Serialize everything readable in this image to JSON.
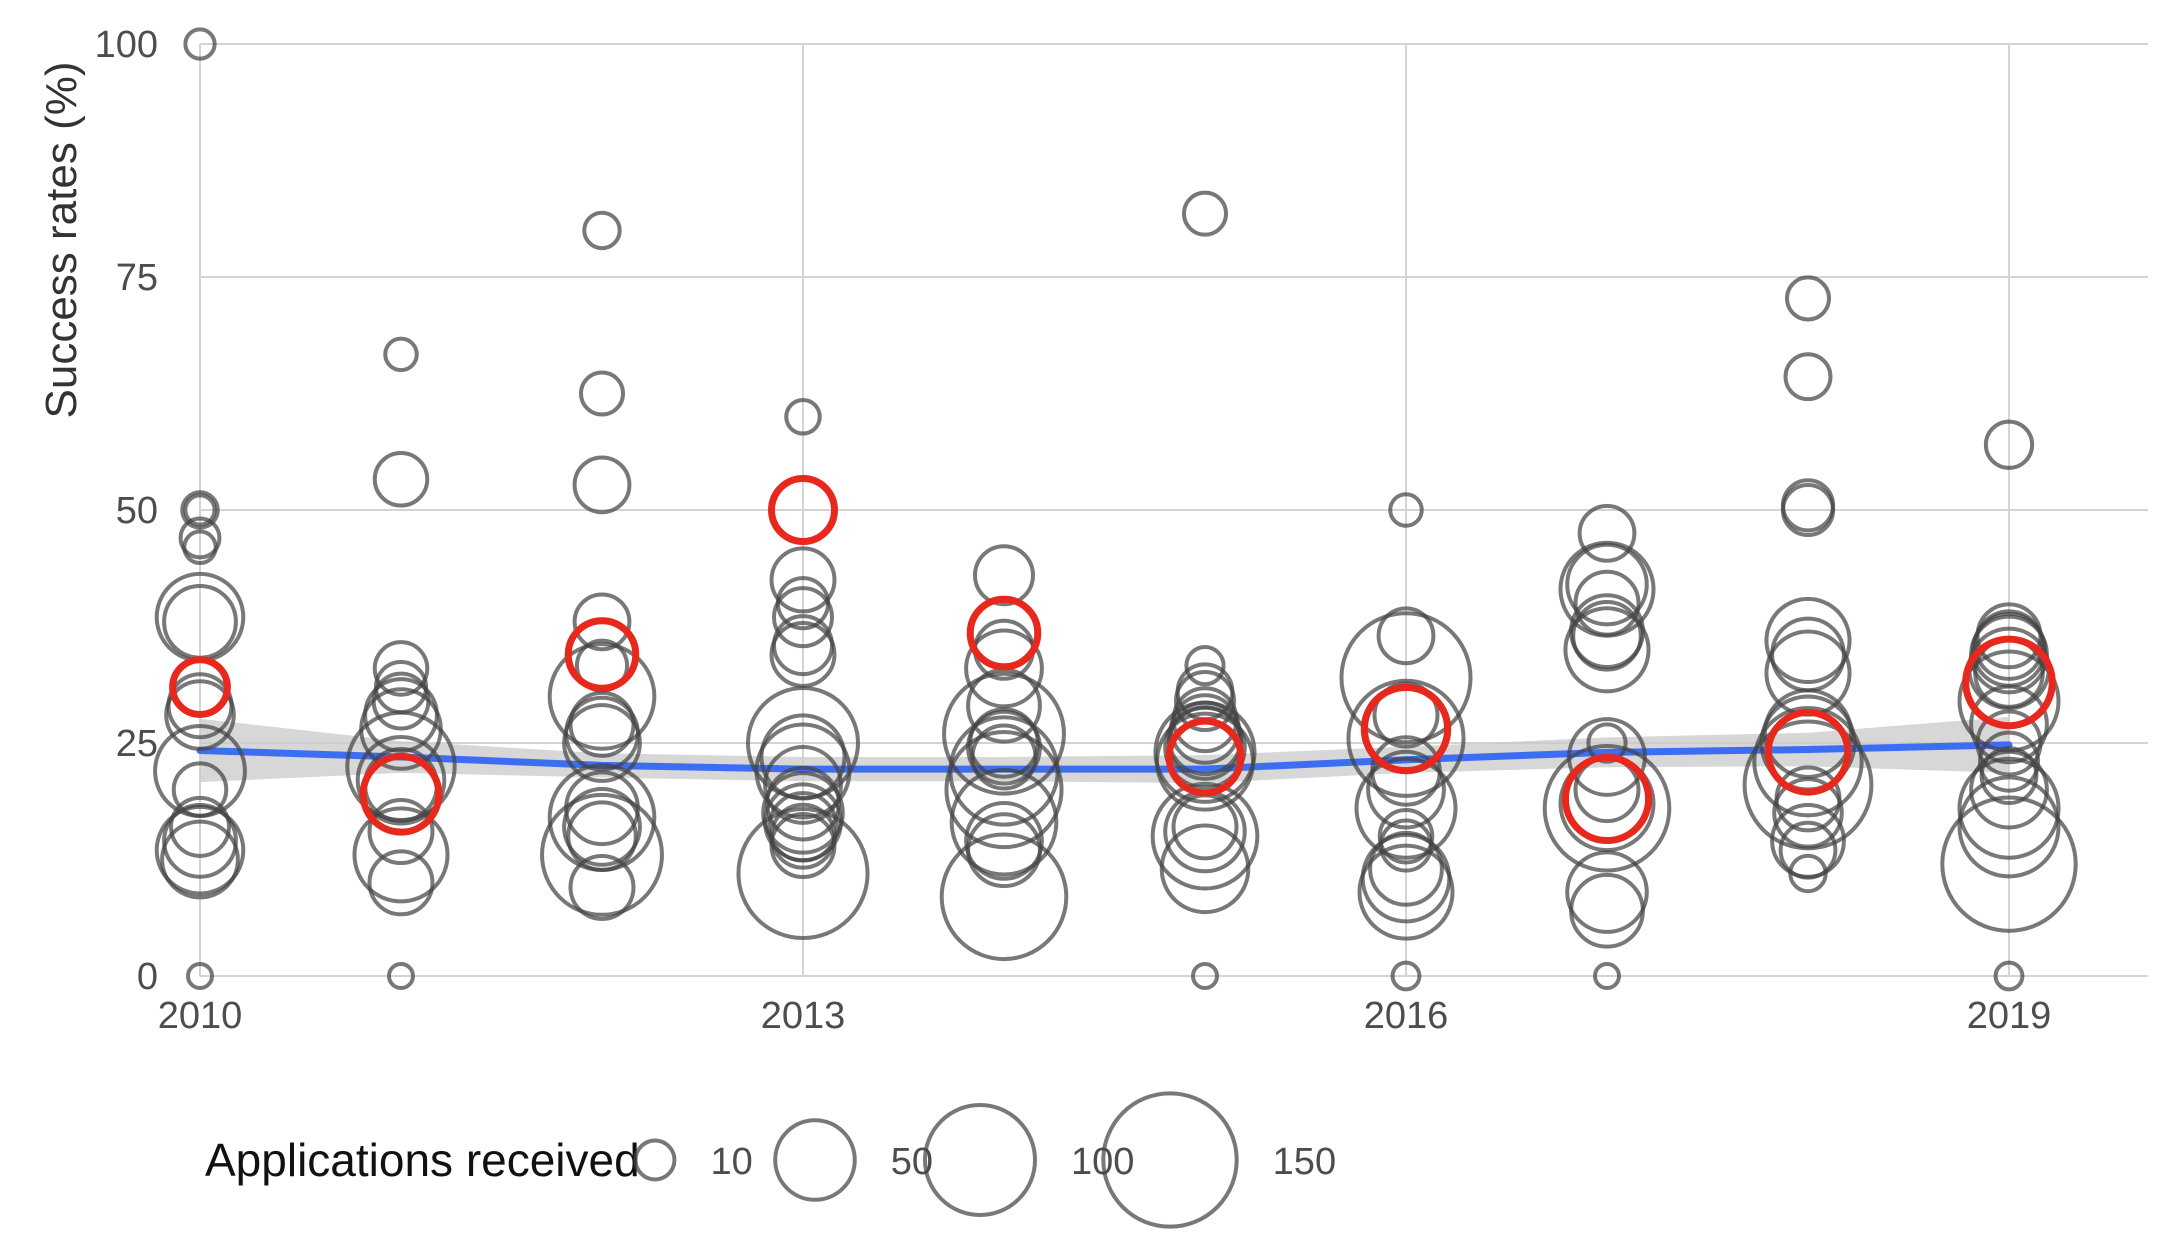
{
  "chart_data": {
    "type": "scatter",
    "ylabel": "Success rates (%)",
    "xlim": [
      2010,
      2019.7
    ],
    "ylim": [
      0,
      100
    ],
    "x_ticks": [
      2010,
      2013,
      2016,
      2019
    ],
    "y_ticks": [
      0,
      25,
      50,
      75,
      100
    ],
    "grid": true,
    "colors": {
      "points": "#444444",
      "highlight": "#e8281c",
      "trend": "#3d6ef2",
      "band": "#c9c9c9"
    },
    "series": [
      {
        "points": [
          {
            "x": 2010,
            "y": 100,
            "size": 5
          },
          {
            "x": 2010,
            "y": 50,
            "size": 5
          },
          {
            "x": 2010,
            "y": 50,
            "size": 8
          },
          {
            "x": 2010,
            "y": 47,
            "size": 10
          },
          {
            "x": 2010,
            "y": 46,
            "size": 6
          },
          {
            "x": 2010,
            "y": 38.5,
            "size": 60
          },
          {
            "x": 2010,
            "y": 38,
            "size": 40
          },
          {
            "x": 2010,
            "y": 29,
            "size": 30
          },
          {
            "x": 2010,
            "y": 28,
            "size": 35
          },
          {
            "x": 2010,
            "y": 22,
            "size": 65
          },
          {
            "x": 2010,
            "y": 20,
            "size": 20
          },
          {
            "x": 2010,
            "y": 16,
            "size": 25
          },
          {
            "x": 2010,
            "y": 14.5,
            "size": 40
          },
          {
            "x": 2010,
            "y": 13.5,
            "size": 60
          },
          {
            "x": 2010,
            "y": 12.5,
            "size": 45
          },
          {
            "x": 2010,
            "y": 0,
            "size": 3
          },
          {
            "x": 2011,
            "y": 66.7,
            "size": 6
          },
          {
            "x": 2011,
            "y": 53.3,
            "size": 20
          },
          {
            "x": 2011,
            "y": 33,
            "size": 20
          },
          {
            "x": 2011,
            "y": 31,
            "size": 18
          },
          {
            "x": 2011,
            "y": 29.5,
            "size": 22
          },
          {
            "x": 2011,
            "y": 28,
            "size": 40
          },
          {
            "x": 2011,
            "y": 26.5,
            "size": 50
          },
          {
            "x": 2011,
            "y": 22.5,
            "size": 95
          },
          {
            "x": 2011,
            "y": 21,
            "size": 60
          },
          {
            "x": 2011,
            "y": 20.5,
            "size": 40
          },
          {
            "x": 2011,
            "y": 15.5,
            "size": 30
          },
          {
            "x": 2011,
            "y": 13,
            "size": 70
          },
          {
            "x": 2011,
            "y": 10,
            "size": 30
          },
          {
            "x": 2011,
            "y": 0,
            "size": 3
          },
          {
            "x": 2012,
            "y": 80,
            "size": 8
          },
          {
            "x": 2012,
            "y": 62.5,
            "size": 12
          },
          {
            "x": 2012,
            "y": 52.7,
            "size": 22
          },
          {
            "x": 2012,
            "y": 38,
            "size": 22
          },
          {
            "x": 2012,
            "y": 33.3,
            "size": 18
          },
          {
            "x": 2012,
            "y": 30,
            "size": 90
          },
          {
            "x": 2012,
            "y": 27,
            "size": 30
          },
          {
            "x": 2012,
            "y": 26,
            "size": 40
          },
          {
            "x": 2012,
            "y": 25,
            "size": 45
          },
          {
            "x": 2012,
            "y": 18,
            "size": 40
          },
          {
            "x": 2012,
            "y": 17,
            "size": 90
          },
          {
            "x": 2012,
            "y": 16,
            "size": 45
          },
          {
            "x": 2012,
            "y": 15,
            "size": 35
          },
          {
            "x": 2012,
            "y": 13,
            "size": 120
          },
          {
            "x": 2012,
            "y": 9.5,
            "size": 30
          },
          {
            "x": 2013,
            "y": 60,
            "size": 7
          },
          {
            "x": 2013,
            "y": 42.5,
            "size": 30
          },
          {
            "x": 2013,
            "y": 40,
            "size": 18
          },
          {
            "x": 2013,
            "y": 38.5,
            "size": 25
          },
          {
            "x": 2013,
            "y": 35.5,
            "size": 25
          },
          {
            "x": 2013,
            "y": 34.5,
            "size": 30
          },
          {
            "x": 2013,
            "y": 25,
            "size": 100
          },
          {
            "x": 2013,
            "y": 23.5,
            "size": 55
          },
          {
            "x": 2013,
            "y": 22,
            "size": 70
          },
          {
            "x": 2013,
            "y": 20.5,
            "size": 45
          },
          {
            "x": 2013,
            "y": 18.5,
            "size": 40
          },
          {
            "x": 2013,
            "y": 17.5,
            "size": 50
          },
          {
            "x": 2013,
            "y": 16.5,
            "size": 45
          },
          {
            "x": 2013,
            "y": 16,
            "size": 35
          },
          {
            "x": 2013,
            "y": 15,
            "size": 30
          },
          {
            "x": 2013,
            "y": 14,
            "size": 30
          },
          {
            "x": 2013,
            "y": 11,
            "size": 140
          },
          {
            "x": 2014,
            "y": 43,
            "size": 25
          },
          {
            "x": 2014,
            "y": 35,
            "size": 25
          },
          {
            "x": 2014,
            "y": 33,
            "size": 45
          },
          {
            "x": 2014,
            "y": 29,
            "size": 40
          },
          {
            "x": 2014,
            "y": 26,
            "size": 120
          },
          {
            "x": 2014,
            "y": 25,
            "size": 35
          },
          {
            "x": 2014,
            "y": 24.5,
            "size": 40
          },
          {
            "x": 2014,
            "y": 23.5,
            "size": 30
          },
          {
            "x": 2014,
            "y": 22,
            "size": 95
          },
          {
            "x": 2014,
            "y": 20,
            "size": 110
          },
          {
            "x": 2014,
            "y": 16.5,
            "size": 90
          },
          {
            "x": 2014,
            "y": 14.5,
            "size": 45
          },
          {
            "x": 2014,
            "y": 13.5,
            "size": 40
          },
          {
            "x": 2014,
            "y": 8.5,
            "size": 130
          },
          {
            "x": 2015,
            "y": 81.8,
            "size": 12
          },
          {
            "x": 2015,
            "y": 33.3,
            "size": 9
          },
          {
            "x": 2015,
            "y": 30.5,
            "size": 22
          },
          {
            "x": 2015,
            "y": 29.5,
            "size": 25
          },
          {
            "x": 2015,
            "y": 27.5,
            "size": 30
          },
          {
            "x": 2015,
            "y": 26.5,
            "size": 35
          },
          {
            "x": 2015,
            "y": 25.5,
            "size": 40
          },
          {
            "x": 2015,
            "y": 25,
            "size": 40
          },
          {
            "x": 2015,
            "y": 24.5,
            "size": 50
          },
          {
            "x": 2015,
            "y": 24,
            "size": 80
          },
          {
            "x": 2015,
            "y": 23,
            "size": 75
          },
          {
            "x": 2015,
            "y": 16,
            "size": 30
          },
          {
            "x": 2015,
            "y": 15.5,
            "size": 50
          },
          {
            "x": 2015,
            "y": 15,
            "size": 90
          },
          {
            "x": 2015,
            "y": 11.5,
            "size": 60
          },
          {
            "x": 2015,
            "y": 0,
            "size": 3
          },
          {
            "x": 2016,
            "y": 50,
            "size": 6
          },
          {
            "x": 2016,
            "y": 36.5,
            "size": 22
          },
          {
            "x": 2016,
            "y": 32,
            "size": 140
          },
          {
            "x": 2016,
            "y": 28,
            "size": 30
          },
          {
            "x": 2016,
            "y": 26.5,
            "size": 60
          },
          {
            "x": 2016,
            "y": 25.5,
            "size": 110
          },
          {
            "x": 2016,
            "y": 22,
            "size": 35
          },
          {
            "x": 2016,
            "y": 20,
            "size": 45
          },
          {
            "x": 2016,
            "y": 18,
            "size": 80
          },
          {
            "x": 2016,
            "y": 15,
            "size": 20
          },
          {
            "x": 2016,
            "y": 14,
            "size": 18
          },
          {
            "x": 2016,
            "y": 11.5,
            "size": 40
          },
          {
            "x": 2016,
            "y": 10.5,
            "size": 60
          },
          {
            "x": 2016,
            "y": 9,
            "size": 70
          },
          {
            "x": 2016,
            "y": 0,
            "size": 4
          },
          {
            "x": 2017,
            "y": 47.5,
            "size": 22
          },
          {
            "x": 2017,
            "y": 42,
            "size": 50
          },
          {
            "x": 2017,
            "y": 41.5,
            "size": 70
          },
          {
            "x": 2017,
            "y": 40,
            "size": 30
          },
          {
            "x": 2017,
            "y": 37,
            "size": 40
          },
          {
            "x": 2017,
            "y": 36.5,
            "size": 35
          },
          {
            "x": 2017,
            "y": 35,
            "size": 55
          },
          {
            "x": 2017,
            "y": 25,
            "size": 9
          },
          {
            "x": 2017,
            "y": 23.5,
            "size": 45
          },
          {
            "x": 2017,
            "y": 20,
            "size": 30
          },
          {
            "x": 2017,
            "y": 18.5,
            "size": 70
          },
          {
            "x": 2017,
            "y": 18,
            "size": 130
          },
          {
            "x": 2017,
            "y": 9,
            "size": 50
          },
          {
            "x": 2017,
            "y": 7,
            "size": 40
          },
          {
            "x": 2017,
            "y": 0,
            "size": 3
          },
          {
            "x": 2018,
            "y": 72.7,
            "size": 12
          },
          {
            "x": 2018,
            "y": 64.3,
            "size": 14
          },
          {
            "x": 2018,
            "y": 50.5,
            "size": 18
          },
          {
            "x": 2018,
            "y": 50,
            "size": 18
          },
          {
            "x": 2018,
            "y": 36,
            "size": 55
          },
          {
            "x": 2018,
            "y": 34.5,
            "size": 40
          },
          {
            "x": 2018,
            "y": 32.5,
            "size": 55
          },
          {
            "x": 2018,
            "y": 26,
            "size": 60
          },
          {
            "x": 2018,
            "y": 25,
            "size": 70
          },
          {
            "x": 2018,
            "y": 23,
            "size": 95
          },
          {
            "x": 2018,
            "y": 20.5,
            "size": 135
          },
          {
            "x": 2018,
            "y": 19,
            "size": 30
          },
          {
            "x": 2018,
            "y": 17.5,
            "size": 35
          },
          {
            "x": 2018,
            "y": 14.5,
            "size": 40
          },
          {
            "x": 2018,
            "y": 13.5,
            "size": 22
          },
          {
            "x": 2018,
            "y": 11,
            "size": 8
          },
          {
            "x": 2019,
            "y": 57,
            "size": 15
          },
          {
            "x": 2019,
            "y": 36.5,
            "size": 30
          },
          {
            "x": 2019,
            "y": 35.5,
            "size": 35
          },
          {
            "x": 2019,
            "y": 35,
            "size": 40
          },
          {
            "x": 2019,
            "y": 34.5,
            "size": 45
          },
          {
            "x": 2019,
            "y": 33,
            "size": 50
          },
          {
            "x": 2019,
            "y": 32.5,
            "size": 35
          },
          {
            "x": 2019,
            "y": 29.5,
            "size": 80
          },
          {
            "x": 2019,
            "y": 27,
            "size": 45
          },
          {
            "x": 2019,
            "y": 25,
            "size": 30
          },
          {
            "x": 2019,
            "y": 23,
            "size": 25
          },
          {
            "x": 2019,
            "y": 21.5,
            "size": 22
          },
          {
            "x": 2019,
            "y": 20,
            "size": 45
          },
          {
            "x": 2019,
            "y": 18,
            "size": 80
          },
          {
            "x": 2019,
            "y": 16,
            "size": 80
          },
          {
            "x": 2019,
            "y": 12,
            "size": 150
          },
          {
            "x": 2019,
            "y": 0,
            "size": 4
          }
        ]
      },
      {
        "points": [
          {
            "x": 2010,
            "y": 31,
            "size": 22
          },
          {
            "x": 2011,
            "y": 19.5,
            "size": 45
          },
          {
            "x": 2012,
            "y": 34.5,
            "size": 35
          },
          {
            "x": 2013,
            "y": 50,
            "size": 30
          },
          {
            "x": 2014,
            "y": 36.8,
            "size": 35
          },
          {
            "x": 2015,
            "y": 23.5,
            "size": 40
          },
          {
            "x": 2016,
            "y": 26.5,
            "size": 55
          },
          {
            "x": 2017,
            "y": 19,
            "size": 55
          },
          {
            "x": 2018,
            "y": 24,
            "size": 50
          },
          {
            "x": 2019,
            "y": 31.5,
            "size": 60
          }
        ]
      }
    ],
    "trend": {
      "x": [
        2010,
        2011,
        2012,
        2013,
        2014,
        2015,
        2016,
        2017,
        2018,
        2019
      ],
      "y": [
        24.2,
        23.5,
        22.6,
        22.2,
        22.2,
        22.2,
        23.2,
        24.0,
        24.3,
        24.8
      ],
      "lower": [
        20.8,
        21.8,
        21.3,
        20.9,
        20.9,
        20.7,
        21.8,
        22.4,
        22.5,
        21.8
      ],
      "upper": [
        27.6,
        25.2,
        23.9,
        23.5,
        23.5,
        23.7,
        24.6,
        25.6,
        26.1,
        27.8
      ]
    },
    "legend": {
      "title": "Applications received",
      "position": "bottom",
      "items": [
        {
          "label": "10",
          "size": 10
        },
        {
          "label": "50",
          "size": 50
        },
        {
          "label": "100",
          "size": 100
        },
        {
          "label": "150",
          "size": 150
        }
      ]
    }
  }
}
